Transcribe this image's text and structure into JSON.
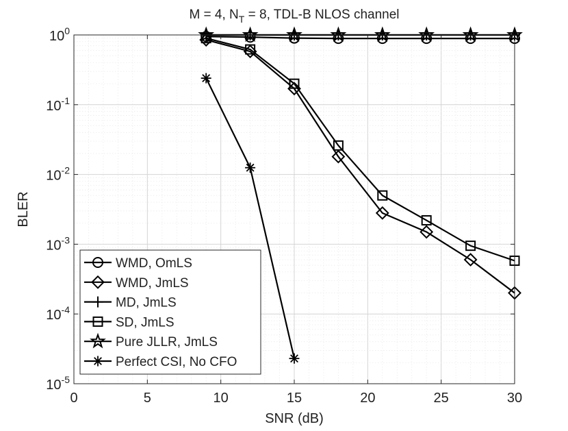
{
  "chart_data": {
    "type": "line",
    "title_parts": [
      "M = 4, N",
      "T",
      " = 8, TDL-B NLOS channel"
    ],
    "title": "M = 4, N_T = 8, TDL-B NLOS channel",
    "xlabel": "SNR (dB)",
    "ylabel": "BLER",
    "xscale": "linear",
    "yscale": "log",
    "xlim": [
      0,
      30
    ],
    "ylim": [
      1e-05,
      1
    ],
    "xticks": [
      0,
      5,
      10,
      15,
      20,
      25,
      30
    ],
    "xtick_labels": [
      "0",
      "5",
      "10",
      "15",
      "20",
      "25",
      "30"
    ],
    "yticks": [
      1e-05,
      0.0001,
      0.001,
      0.01,
      0.1,
      1
    ],
    "ytick_labels": [
      {
        "base": "10",
        "exp": "-5"
      },
      {
        "base": "10",
        "exp": "-4"
      },
      {
        "base": "10",
        "exp": "-3"
      },
      {
        "base": "10",
        "exp": "-2"
      },
      {
        "base": "10",
        "exp": "-1"
      },
      {
        "base": "10",
        "exp": "0"
      }
    ],
    "grid": true,
    "minor_grid": true,
    "legend_position": "bottom-left",
    "series": [
      {
        "name": "WMD, OmLS",
        "marker": "circle",
        "x": [
          9,
          12,
          15,
          18,
          21,
          24,
          27,
          30
        ],
        "y": [
          0.95,
          0.93,
          0.9,
          0.89,
          0.89,
          0.89,
          0.89,
          0.89
        ]
      },
      {
        "name": "WMD, JmLS",
        "marker": "diamond",
        "x": [
          9,
          12,
          15,
          18,
          21,
          24,
          27,
          30
        ],
        "y": [
          0.85,
          0.58,
          0.17,
          0.018,
          0.0028,
          0.0015,
          0.0006,
          0.0002
        ]
      },
      {
        "name": "MD, JmLS",
        "marker": "plus",
        "x": [
          9,
          12,
          15,
          18,
          21,
          24,
          27,
          30
        ],
        "y": [
          1.0,
          1.0,
          1.0,
          1.0,
          1.0,
          1.0,
          1.0,
          1.0
        ]
      },
      {
        "name": "SD, JmLS",
        "marker": "square",
        "x": [
          9,
          12,
          15,
          18,
          21,
          24,
          27,
          30
        ],
        "y": [
          0.9,
          0.62,
          0.2,
          0.026,
          0.005,
          0.0022,
          0.00095,
          0.00058
        ]
      },
      {
        "name": "Pure JLLR, JmLS",
        "marker": "pentagram",
        "x": [
          9,
          12,
          15,
          18,
          21,
          24,
          27,
          30
        ],
        "y": [
          1.0,
          1.0,
          1.0,
          1.0,
          1.0,
          1.0,
          1.0,
          1.0
        ]
      },
      {
        "name": "Perfect CSI, No CFO",
        "marker": "asterisk",
        "x": [
          9,
          12,
          15
        ],
        "y": [
          0.24,
          0.0125,
          2.3e-05
        ]
      }
    ]
  }
}
